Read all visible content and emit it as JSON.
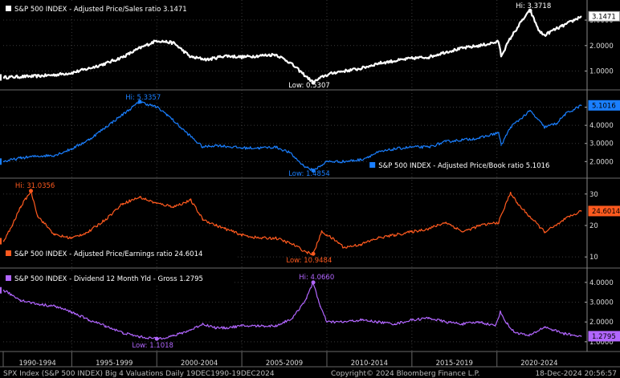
{
  "window": {
    "footer_left": "SPX Index (S&P 500 INDEX) Big 4 Valuations  Daily 19DEC1990-19DEC2024",
    "footer_center": "Copyright© 2024 Bloomberg Finance L.P.",
    "footer_right": "18-Dec-2024 20:56:57"
  },
  "colors": {
    "background": "#000000",
    "grid": "#3a3a3a",
    "price_sales": "#ffffff",
    "price_book": "#1a7fff",
    "price_earnings": "#ff5a1f",
    "dividend_yield": "#b266ff",
    "value_box_text": "#000000"
  },
  "chart_data": {
    "type": "line",
    "x_axis": {
      "labels": [
        "1990-1994",
        "1995-1999",
        "2000-2004",
        "2005-2009",
        "2010-2014",
        "2015-2019",
        "2020-2024"
      ],
      "range": [
        1990.97,
        2024.97
      ]
    },
    "panels": [
      {
        "id": "ps",
        "legend": "S&P 500 INDEX - Adjusted Price/Sales ratio 3.1471",
        "legend_position": "top-left",
        "last_value": "3.1471",
        "hi_label": "Hi: 3.3718",
        "low_label": "Low: 0.5307",
        "ylim": [
          0.45,
          3.6
        ],
        "yticks": [
          "3.0000",
          "2.0000",
          "1.0000"
        ],
        "ytick_values": [
          3,
          2,
          1
        ],
        "x": [
          1991,
          1992,
          1993,
          1994,
          1995,
          1996,
          1997,
          1998,
          1999,
          2000,
          2001,
          2002,
          2003,
          2004,
          2005,
          2006,
          2007,
          2007.8,
          2008.5,
          2009.2,
          2009.8,
          2010.5,
          2011,
          2012,
          2013,
          2014,
          2015,
          2016,
          2017,
          2018,
          2019,
          2020.1,
          2020.25,
          2020.8,
          2021.5,
          2021.95,
          2022.5,
          2022.8,
          2023.3,
          2023.8,
          2024.4,
          2024.95
        ],
        "y": [
          0.75,
          0.78,
          0.8,
          0.85,
          0.93,
          1.1,
          1.3,
          1.55,
          1.9,
          2.2,
          2.1,
          1.55,
          1.45,
          1.6,
          1.55,
          1.6,
          1.65,
          1.35,
          0.95,
          0.55,
          0.8,
          0.95,
          1.0,
          1.1,
          1.3,
          1.4,
          1.5,
          1.55,
          1.75,
          1.9,
          2.0,
          2.15,
          1.6,
          2.3,
          3.0,
          3.37,
          2.55,
          2.4,
          2.6,
          2.75,
          2.95,
          3.15
        ]
      },
      {
        "id": "pb",
        "legend": "S&P 500 INDEX - Adjusted Price/Book ratio 5.1016",
        "legend_position": "bottom-right",
        "last_value": "5.1016",
        "hi_label": "Hi: 5.3357",
        "low_label": "Low: 1.4854",
        "ylim": [
          1.35,
          5.6
        ],
        "yticks": [
          "5.0000",
          "4.0000",
          "3.0000",
          "2.0000"
        ],
        "ytick_values": [
          5,
          4,
          3,
          2
        ],
        "x": [
          1991,
          1992,
          1993,
          1994,
          1995,
          1996,
          1997,
          1998,
          1999,
          2000,
          2000.6,
          2001.5,
          2002.7,
          2003.5,
          2005,
          2006,
          2007,
          2007.8,
          2008.6,
          2009.2,
          2010,
          2011,
          2012,
          2013,
          2014,
          2015,
          2016,
          2017,
          2018,
          2019,
          2020.1,
          2020.25,
          2020.8,
          2021.95,
          2022.8,
          2023.5,
          2024,
          2024.95
        ],
        "y": [
          2.0,
          2.2,
          2.3,
          2.35,
          2.7,
          3.2,
          3.9,
          4.6,
          5.3,
          5.0,
          4.6,
          3.8,
          2.8,
          2.9,
          2.75,
          2.75,
          2.8,
          2.5,
          1.8,
          1.5,
          2.0,
          2.0,
          2.1,
          2.5,
          2.7,
          2.8,
          2.8,
          3.1,
          3.2,
          3.3,
          3.6,
          2.9,
          3.9,
          4.8,
          3.9,
          4.1,
          4.6,
          5.1
        ]
      },
      {
        "id": "pe",
        "legend": "S&P 500 INDEX - Adjusted Price/Earnings ratio 24.6014",
        "legend_position": "bottom-left",
        "last_value": "24.6014",
        "hi_label": "Hi: 31.0356",
        "low_label": "Low: 10.9484",
        "ylim": [
          8,
          33
        ],
        "yticks": [
          "30",
          "20",
          "10"
        ],
        "ytick_values": [
          30,
          20,
          10
        ],
        "x": [
          1991,
          1991.5,
          1992,
          1992.6,
          1993,
          1994,
          1995,
          1996,
          1997,
          1998,
          1999,
          2000,
          2001,
          2002,
          2002.7,
          2003.5,
          2004,
          2005,
          2006,
          2007,
          2008,
          2008.8,
          2009.2,
          2009.7,
          2010,
          2010.7,
          2011,
          2012,
          2013,
          2014,
          2015,
          2016,
          2017,
          2018,
          2019,
          2020.1,
          2020.8,
          2021.2,
          2021.9,
          2022.8,
          2023.5,
          2024,
          2024.95
        ],
        "y": [
          15,
          20,
          26,
          31,
          23,
          17,
          16,
          18,
          22,
          27,
          29,
          27,
          26,
          28,
          22,
          20,
          19,
          17,
          16,
          16,
          14,
          11.5,
          11,
          18,
          17,
          14.5,
          13,
          14,
          16,
          17,
          18,
          19,
          21,
          18,
          20,
          21,
          30.5,
          27,
          23,
          18,
          20,
          22,
          24.6
        ]
      },
      {
        "id": "dy",
        "legend": "S&P 500 INDEX - Dividend 12 Month Yld - Gross 1.2795",
        "legend_position": "top-left",
        "last_value": "1.2795",
        "hi_label": "Hi: 4.0660",
        "low_label": "Low: 1.1018",
        "ylim": [
          0.75,
          4.4
        ],
        "yticks": [
          "4.0000",
          "3.0000",
          "2.0000",
          "1.0000"
        ],
        "ytick_values": [
          4,
          3,
          2,
          1
        ],
        "x": [
          1991,
          1992,
          1993,
          1994,
          1995,
          1996,
          1997,
          1998,
          1999,
          2000,
          2001,
          2002,
          2002.7,
          2003.5,
          2004,
          2005,
          2006,
          2007,
          2008,
          2008.8,
          2009.2,
          2009.6,
          2010,
          2011,
          2012,
          2013,
          2014,
          2015,
          2016,
          2017,
          2018,
          2019,
          2019.9,
          2020.2,
          2020.6,
          2021,
          2021.9,
          2022.8,
          2023.3,
          2024,
          2024.95
        ],
        "y": [
          3.6,
          3.1,
          2.9,
          2.8,
          2.5,
          2.1,
          1.8,
          1.45,
          1.25,
          1.15,
          1.3,
          1.6,
          1.9,
          1.7,
          1.7,
          1.8,
          1.8,
          1.8,
          2.2,
          3.2,
          4.0,
          2.8,
          2.0,
          2.0,
          2.1,
          2.0,
          1.9,
          2.1,
          2.2,
          2.0,
          1.9,
          2.0,
          1.8,
          2.5,
          1.9,
          1.5,
          1.3,
          1.75,
          1.6,
          1.4,
          1.28
        ]
      }
    ]
  }
}
